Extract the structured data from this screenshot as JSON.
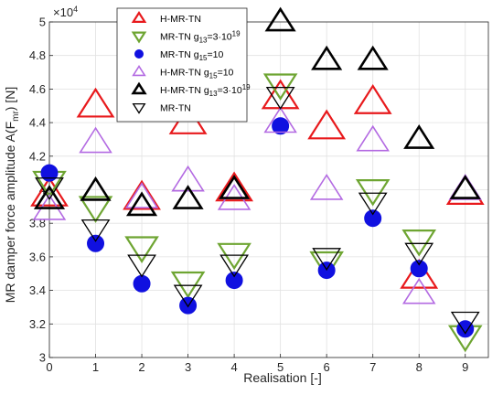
{
  "chart_data": {
    "type": "scatter",
    "xlabel": "Realisation [-]",
    "ylabel_main": "MR damper force amplitude A(F",
    "ylabel_sub": "mr",
    "ylabel_end": ") [N]",
    "y_multiplier": "×10",
    "y_multiplier_exp": "4",
    "xlim": [
      0,
      9.5
    ],
    "ylim": [
      3.0,
      5.0
    ],
    "x_ticks": [
      "0",
      "1",
      "2",
      "3",
      "4",
      "5",
      "6",
      "7",
      "8",
      "9"
    ],
    "y_ticks": [
      "3",
      "3.2",
      "3.4",
      "3.6",
      "3.8",
      "4",
      "4.2",
      "4.4",
      "4.6",
      "4.8",
      "5"
    ],
    "grid": true,
    "legend_position": "top-left",
    "x": [
      0,
      1,
      2,
      3,
      4,
      5,
      6,
      7,
      8,
      9
    ],
    "series": [
      {
        "name": "H-MR-TN",
        "marker": "triangle-up",
        "color": "#e8191c",
        "line_width": 2.2,
        "size": 18,
        "values": [
          3.97,
          4.5,
          3.95,
          4.4,
          4.0,
          4.55,
          4.37,
          4.52,
          3.48,
          3.98
        ]
      },
      {
        "name": "MR-TN g13=3·10^19",
        "name_parts": [
          "MR-TN g",
          "13",
          "=3·10",
          "19"
        ],
        "marker": "triangle-down",
        "color": "#6ea532",
        "line_width": 2.2,
        "size": 16,
        "values": [
          4.05,
          3.9,
          3.66,
          3.45,
          3.62,
          4.63,
          3.57,
          4.0,
          3.7,
          3.13
        ]
      },
      {
        "name": "MR-TN g15=10",
        "name_parts": [
          "MR-TN g",
          "15",
          "=10",
          ""
        ],
        "marker": "circle-filled",
        "color": "#1010e0",
        "size": 9,
        "values": [
          4.1,
          3.68,
          3.44,
          3.31,
          3.46,
          4.38,
          3.52,
          3.83,
          3.53,
          3.17
        ]
      },
      {
        "name": "H-MR-TN g15=10",
        "name_parts": [
          "H-MR-TN g",
          "15",
          "=10",
          ""
        ],
        "marker": "triangle-up",
        "color": "#b36ae2",
        "line_width": 1.6,
        "size": 16,
        "values": [
          3.88,
          4.28,
          3.95,
          4.05,
          3.94,
          4.4,
          4.0,
          4.29,
          3.38,
          4.0
        ]
      },
      {
        "name": "H-MR-TN g13=3·10^19",
        "name_parts": [
          "H-MR-TN g",
          "13",
          "=3·10",
          "19"
        ],
        "marker": "triangle-up",
        "color": "#000000",
        "line_width": 2.6,
        "size": 14,
        "values": [
          3.94,
          3.99,
          3.9,
          3.94,
          4.0,
          5.0,
          4.77,
          4.77,
          4.3,
          4.0
        ]
      },
      {
        "name": "MR-TN",
        "marker": "triangle-down",
        "color": "#000000",
        "line_width": 1.3,
        "size": 14,
        "values": [
          4.02,
          3.77,
          3.56,
          3.38,
          3.56,
          4.56,
          3.6,
          3.93,
          3.63,
          3.22
        ]
      }
    ]
  }
}
